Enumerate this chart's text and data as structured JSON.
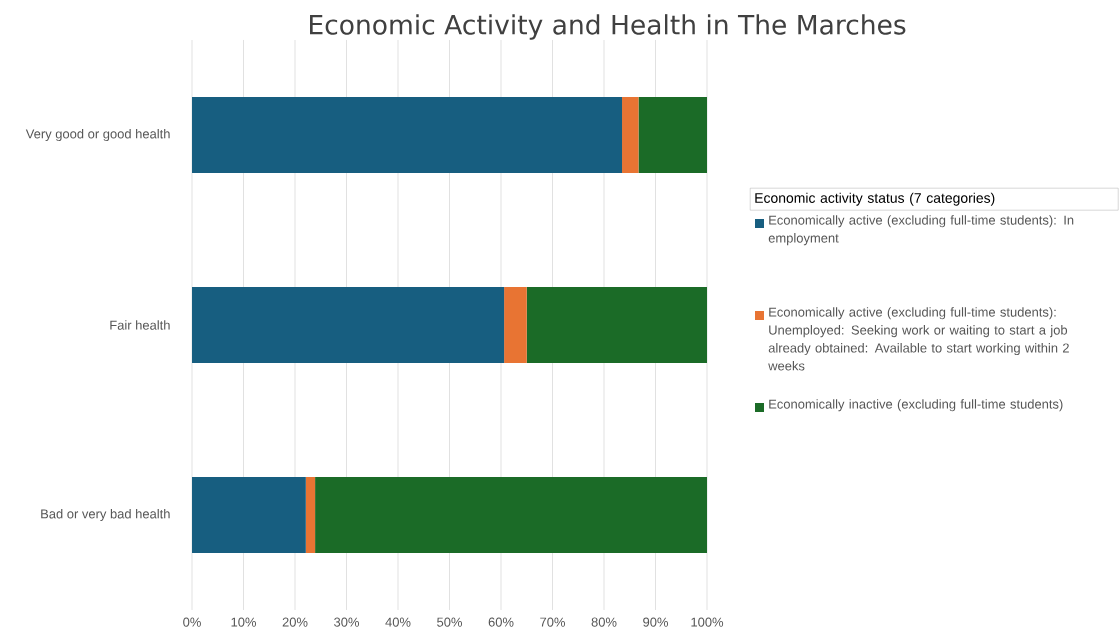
{
  "chart_data": {
    "type": "bar",
    "orientation": "horizontal",
    "stacked": true,
    "title": "Economic Activity and Health in The Marches",
    "categories": [
      "Very good or good health",
      "Fair health",
      "Bad or very bad health"
    ],
    "series": [
      {
        "name": "Economically active (excluding full-time students): In employment",
        "color": "#175e80",
        "values": [
          83.5,
          60.6,
          22.1
        ]
      },
      {
        "name": "Economically active (excluding full-time students): Unemployed: Seeking work or waiting to start a job already obtained: Available to start working within 2 weeks",
        "color": "#e87433",
        "values": [
          3.2,
          4.4,
          1.8
        ]
      },
      {
        "name": "Economically inactive (excluding full-time students)",
        "color": "#1b6b27",
        "values": [
          13.3,
          35.0,
          76.1
        ]
      }
    ],
    "legend_title": "Economic activity status (7 categories)",
    "legend": "right",
    "grid": "x",
    "xlim": [
      0,
      100
    ],
    "xticks": [
      {
        "value": 0,
        "label": "0%"
      },
      {
        "value": 10,
        "label": "10%"
      },
      {
        "value": 20,
        "label": "20%"
      },
      {
        "value": 30,
        "label": "30%"
      },
      {
        "value": 40,
        "label": "40%"
      },
      {
        "value": 50,
        "label": "50%"
      },
      {
        "value": 60,
        "label": "60%"
      },
      {
        "value": 70,
        "label": "70%"
      },
      {
        "value": 80,
        "label": "80%"
      },
      {
        "value": 90,
        "label": "90%"
      },
      {
        "value": 100,
        "label": "100%"
      }
    ]
  }
}
